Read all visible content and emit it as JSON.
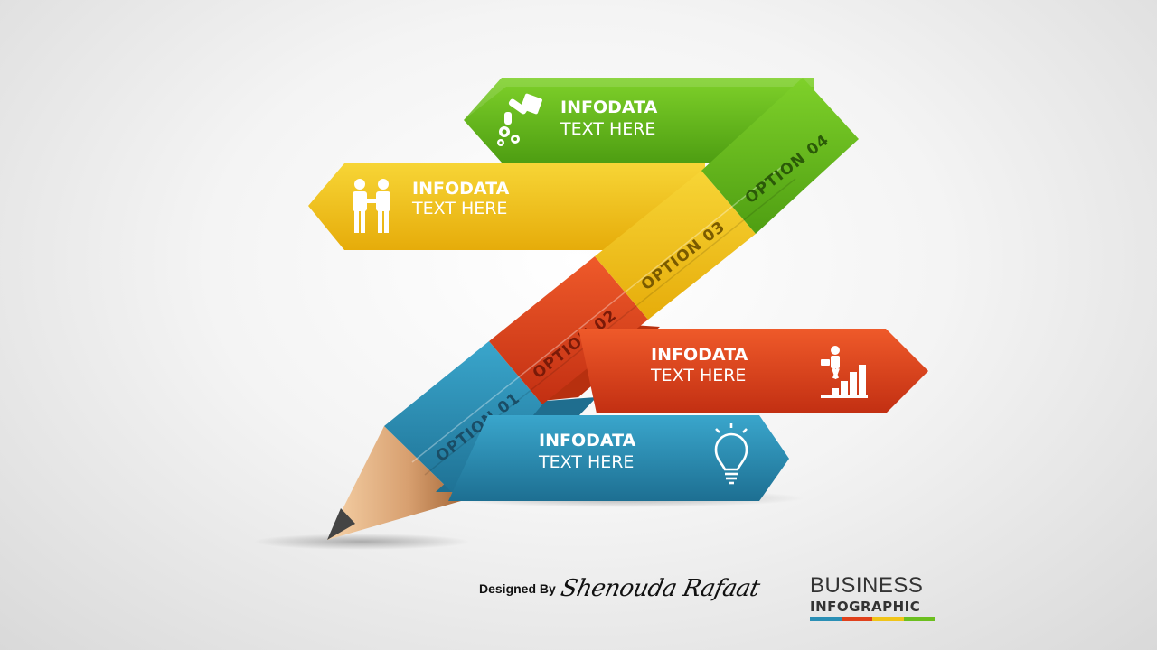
{
  "cards": [
    {
      "title": "INFODATA",
      "subtitle": "TEXT HERE",
      "icon": "robot-arm-gears-icon",
      "color": "#6cbf1f"
    },
    {
      "title": "INFODATA",
      "subtitle": "TEXT HERE",
      "icon": "handshake-people-icon",
      "color": "#f0c419"
    },
    {
      "title": "INFODATA",
      "subtitle": "TEXT HERE",
      "icon": "businessman-stairs-chart-icon",
      "color": "#e0411c"
    },
    {
      "title": "INFODATA",
      "subtitle": "TEXT HERE",
      "icon": "light-bulb-icon",
      "color": "#2a8fb5"
    }
  ],
  "options": [
    "OPTION 01",
    "OPTION 02",
    "OPTION 03",
    "OPTION 04"
  ],
  "credit": {
    "by": "Designed By",
    "name": "Shenouda Rafaat"
  },
  "brand": {
    "line1": "BUSINESS",
    "line2": "INFOGRAPHIC",
    "bar_colors": [
      "#2a8fb5",
      "#e0411c",
      "#f0c419",
      "#6cbf1f"
    ]
  }
}
